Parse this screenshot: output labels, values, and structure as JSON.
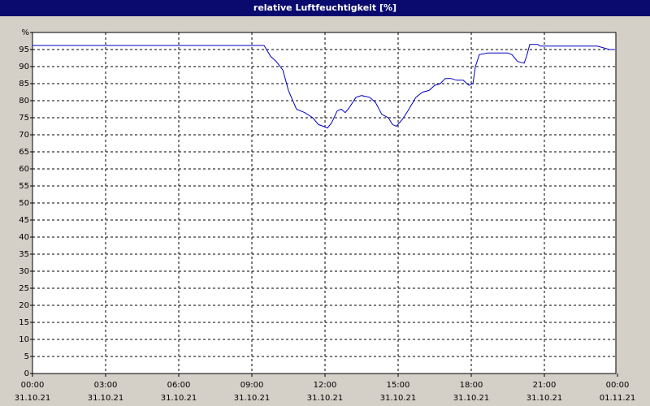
{
  "chart_data": {
    "type": "line",
    "title": "relative Luftfeuchtigkeit [%]",
    "x": [
      0,
      9.5,
      9.77,
      10,
      10.27,
      10.5,
      10.83,
      11.17,
      11.5,
      11.73,
      11.93,
      12.1,
      12.27,
      12.5,
      12.67,
      12.83,
      13,
      13.27,
      13.5,
      13.83,
      14.07,
      14.33,
      14.6,
      14.77,
      14.93,
      15.17,
      15.4,
      15.73,
      16,
      16.27,
      16.5,
      16.73,
      16.93,
      17.17,
      17.4,
      17.67,
      17.9,
      18.07,
      18.17,
      18.33,
      18.67,
      19.5,
      19.67,
      19.9,
      20.17,
      20.27,
      20.4,
      20.73,
      20.83,
      23.17,
      23.67,
      23.9
    ],
    "series": [
      {
        "color": "#0000c0",
        "values": [
          96.2,
          96.2,
          93,
          91.5,
          89,
          83,
          77.5,
          76.5,
          75,
          73,
          72.5,
          72,
          73.5,
          77,
          77.5,
          76.5,
          78,
          81,
          81.5,
          81,
          79.5,
          76,
          75,
          73,
          72.5,
          74.5,
          77,
          81,
          82.5,
          83,
          84.5,
          85,
          86.5,
          86.5,
          86,
          86,
          84.5,
          85,
          90,
          93.5,
          94,
          94,
          93.5,
          91.5,
          91,
          93,
          96.5,
          96.5,
          96,
          96,
          95,
          95
        ]
      }
    ],
    "xlim": [
      0,
      24
    ],
    "xticks": [
      {
        "value": 0,
        "label": "00:00",
        "date": "31.10.21"
      },
      {
        "value": 3,
        "label": "03:00",
        "date": "31.10.21"
      },
      {
        "value": 6,
        "label": "06:00",
        "date": "31.10.21"
      },
      {
        "value": 9,
        "label": "09:00",
        "date": "31.10.21"
      },
      {
        "value": 12,
        "label": "12:00",
        "date": "31.10.21"
      },
      {
        "value": 15,
        "label": "15:00",
        "date": "31.10.21"
      },
      {
        "value": 18,
        "label": "18:00",
        "date": "31.10.21"
      },
      {
        "value": 21,
        "label": "21:00",
        "date": "31.10.21"
      },
      {
        "value": 24,
        "label": "00:00",
        "date": "01.11.21"
      }
    ],
    "ylim": [
      0,
      100
    ],
    "yticks": [
      0,
      5,
      10,
      15,
      20,
      25,
      30,
      35,
      40,
      45,
      50,
      55,
      60,
      65,
      70,
      75,
      80,
      85,
      90,
      95,
      {
        "value": 100,
        "label": "%"
      }
    ],
    "grid": true
  }
}
